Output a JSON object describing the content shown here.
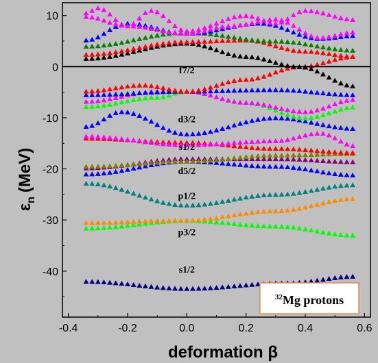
{
  "chart_data": {
    "type": "scatter",
    "title": "",
    "xlabel": "deformation β",
    "ylabel": "ε_n (MeV)",
    "ylabel_main": "ε",
    "ylabel_sub": "n",
    "ylabel_unit": "(MeV)",
    "xlim": [
      -0.42,
      0.62
    ],
    "ylim": [
      -49,
      12.5
    ],
    "x_ticks": [
      -0.4,
      -0.2,
      0.0,
      0.2,
      0.4,
      0.6
    ],
    "x_tick_labels": [
      "-0.4",
      "-0.2",
      "0.0",
      "0.2",
      "0.4",
      "0.6"
    ],
    "y_ticks": [
      -40,
      -30,
      -20,
      -10,
      0,
      10
    ],
    "y_tick_labels": [
      "-40",
      "-30",
      "-20",
      "-10",
      "0",
      "10"
    ],
    "zero_line": true,
    "grid": false,
    "marker": "triangle-up",
    "legend": {
      "isotope_mass": "32",
      "text": "Mg protons",
      "placement": "bottom-right"
    },
    "state_labels": [
      {
        "text": "f7/2",
        "x": 0.0,
        "y": -1.3
      },
      {
        "text": "d3/2",
        "x": 0.0,
        "y": -10.9
      },
      {
        "text": "s1/2",
        "x": 0.0,
        "y": -16.3
      },
      {
        "text": "d5/2",
        "x": 0.0,
        "y": -21.0
      },
      {
        "text": "p1/2",
        "x": 0.0,
        "y": -25.9
      },
      {
        "text": "p3/2",
        "x": 0.0,
        "y": -33.0
      },
      {
        "text": "s1/2",
        "x": 0.0,
        "y": -40.3
      }
    ],
    "series": [
      {
        "color": "#000080",
        "knots": [
          [
            -0.34,
            -42.0
          ],
          [
            0.0,
            -43.4
          ],
          [
            0.34,
            -42.3
          ],
          [
            0.57,
            -41.0
          ]
        ]
      },
      {
        "color": "#00ff00",
        "knots": [
          [
            -0.34,
            -31.6
          ],
          [
            0.0,
            -30.1
          ],
          [
            0.3,
            -31.2
          ],
          [
            0.57,
            -33.0
          ]
        ]
      },
      {
        "color": "#ff8c00",
        "knots": [
          [
            -0.34,
            -30.5
          ],
          [
            0.0,
            -30.0
          ],
          [
            0.3,
            -28.2
          ],
          [
            0.57,
            -25.8
          ]
        ]
      },
      {
        "color": "#008080",
        "knots": [
          [
            -0.34,
            -22.8
          ],
          [
            0.0,
            -27.1
          ],
          [
            0.3,
            -25.0
          ],
          [
            0.57,
            -23.1
          ]
        ]
      },
      {
        "color": "#0000ff",
        "knots": [
          [
            -0.34,
            -21.0
          ],
          [
            0.0,
            -18.5
          ],
          [
            0.3,
            -19.5
          ],
          [
            0.57,
            -21.2
          ]
        ]
      },
      {
        "color": "#800080",
        "knots": [
          [
            -0.34,
            -19.8
          ],
          [
            0.0,
            -18.0
          ],
          [
            0.3,
            -18.0
          ],
          [
            0.57,
            -18.6
          ]
        ]
      },
      {
        "color": "#808000",
        "knots": [
          [
            -0.34,
            -19.5
          ],
          [
            0.0,
            -18.5
          ],
          [
            0.3,
            -17.3
          ],
          [
            0.57,
            -17.0
          ]
        ]
      },
      {
        "color": "#ff0000",
        "knots": [
          [
            -0.34,
            -14.0
          ],
          [
            0.0,
            -14.8
          ],
          [
            0.3,
            -16.0
          ],
          [
            0.57,
            -16.8
          ]
        ]
      },
      {
        "color": "#ff00ff",
        "knots": [
          [
            -0.34,
            -13.6
          ],
          [
            0.0,
            -15.3
          ],
          [
            0.3,
            -14.5
          ],
          [
            0.45,
            -13.0
          ],
          [
            0.57,
            -15.5
          ]
        ]
      },
      {
        "color": "#0000ff",
        "knots": [
          [
            -0.34,
            -11.7
          ],
          [
            -0.22,
            -8.8
          ],
          [
            0.0,
            -13.2
          ],
          [
            0.3,
            -10.0
          ],
          [
            0.57,
            -12.1
          ]
        ]
      },
      {
        "color": "#00ff00",
        "knots": [
          [
            -0.34,
            -7.8
          ],
          [
            -0.1,
            -6.0
          ],
          [
            0.0,
            -4.8
          ],
          [
            0.2,
            -7.0
          ],
          [
            0.4,
            -10.0
          ],
          [
            0.57,
            -7.9
          ]
        ]
      },
      {
        "color": "#ff00ff",
        "knots": [
          [
            -0.34,
            -6.8
          ],
          [
            -0.1,
            -4.8
          ],
          [
            0.0,
            -4.8
          ],
          [
            0.2,
            -7.0
          ],
          [
            0.4,
            -8.8
          ],
          [
            0.57,
            -6.4
          ]
        ]
      },
      {
        "color": "#0000ff",
        "knots": [
          [
            -0.34,
            -5.5
          ],
          [
            0.0,
            -4.8
          ],
          [
            0.3,
            -4.5
          ],
          [
            0.57,
            -5.5
          ]
        ]
      },
      {
        "color": "#ff0000",
        "knots": [
          [
            -0.34,
            -4.8
          ],
          [
            -0.15,
            -3.6
          ],
          [
            0.0,
            -4.8
          ],
          [
            0.2,
            -2.5
          ],
          [
            0.38,
            0.0
          ],
          [
            0.57,
            2.0
          ]
        ]
      },
      {
        "color": "#000000",
        "knots": [
          [
            -0.34,
            1.6
          ],
          [
            0.0,
            4.6
          ],
          [
            0.2,
            2.0
          ],
          [
            0.38,
            0.0
          ],
          [
            0.57,
            -3.8
          ]
        ]
      },
      {
        "color": "#ff0000",
        "knots": [
          [
            -0.34,
            2.4
          ],
          [
            0.0,
            4.9
          ],
          [
            0.2,
            5.2
          ],
          [
            0.4,
            3.0
          ],
          [
            0.57,
            2.0
          ]
        ]
      },
      {
        "color": "#008000",
        "knots": [
          [
            -0.34,
            4.0
          ],
          [
            0.0,
            6.7
          ],
          [
            0.3,
            5.0
          ],
          [
            0.57,
            3.2
          ]
        ]
      },
      {
        "color": "#0000ff",
        "knots": [
          [
            -0.34,
            5.2
          ],
          [
            -0.2,
            8.5
          ],
          [
            0.0,
            6.5
          ],
          [
            0.25,
            8.5
          ],
          [
            0.45,
            5.5
          ],
          [
            0.57,
            6.1
          ]
        ]
      },
      {
        "color": "#ff00ff",
        "knots": [
          [
            -0.34,
            10.5
          ],
          [
            -0.3,
            11.5
          ],
          [
            -0.2,
            8.0
          ],
          [
            -0.12,
            11.0
          ],
          [
            0.0,
            7.0
          ],
          [
            0.2,
            10.0
          ],
          [
            0.3,
            8.5
          ],
          [
            0.4,
            11.0
          ],
          [
            0.57,
            9.2
          ]
        ]
      },
      {
        "color": "#ff00ff",
        "knots": [
          [
            -0.34,
            9.8
          ],
          [
            -0.2,
            8.0
          ],
          [
            0.0,
            6.5
          ],
          [
            0.15,
            8.0
          ],
          [
            0.3,
            9.3
          ],
          [
            0.45,
            5.7
          ],
          [
            0.57,
            6.8
          ]
        ]
      }
    ]
  }
}
